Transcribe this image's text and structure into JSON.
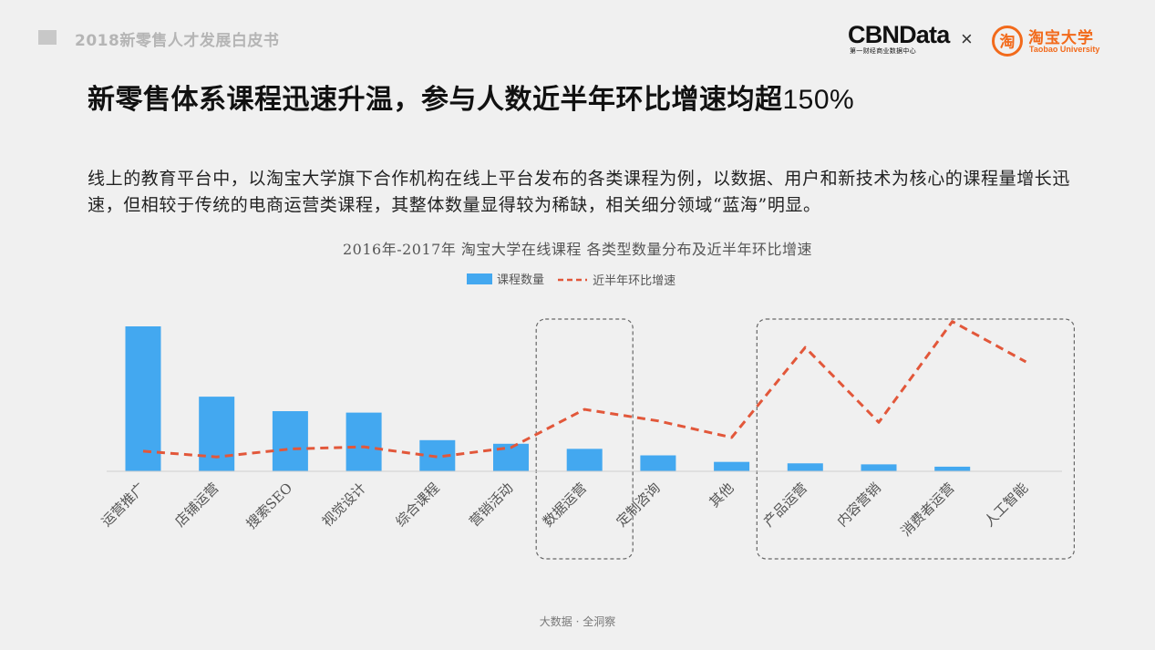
{
  "header": {
    "report_title": "2018新零售人才发展白皮书",
    "logo_cbn": "CBNData",
    "logo_cbn_sub": "第一财经商业数据中心",
    "logo_separator": "×",
    "logo_taobao_icon": "淘",
    "logo_taobao_cn": "淘宝大学",
    "logo_taobao_en": "Taobao University"
  },
  "slide": {
    "title_main": "新零售体系课程迅速升温，参与人数近半年环比增速均超",
    "title_pct": "150%",
    "body": "线上的教育平台中，以淘宝大学旗下合作机构在线上平台发布的各类课程为例，以数据、用户和新技术为核心的课程量增长迅速，但相较于传统的电商运营类课程，其整体数量显得较为稀缺，相关细分领域“蓝海”明显。"
  },
  "colors": {
    "bar": "#43a8f0",
    "line": "#e2573a",
    "highlight_box": "#666666",
    "background": "#f0f0f0"
  },
  "chart_data": {
    "type": "bar",
    "title": "2016年-2017年 淘宝大学在线课程 各类型数量分布及近半年环比增速",
    "categories": [
      "运营推广",
      "店铺运营",
      "搜索SEO",
      "视觉设计",
      "综合课程",
      "营销活动",
      "数据运营",
      "定制咨询",
      "其他",
      "产品运营",
      "内容营销",
      "消费者运营",
      "人工智能"
    ],
    "series": [
      {
        "name": "课程数量",
        "type": "bar",
        "values": [
          100,
          51.5,
          41.5,
          40.5,
          21.5,
          19,
          15.5,
          11,
          6.5,
          5.5,
          4.8,
          3.2,
          0
        ]
      },
      {
        "name": "近半年环比增速",
        "type": "line",
        "style": "dashed",
        "values": [
          14,
          10,
          15.5,
          17,
          10,
          16.5,
          43,
          35,
          23.5,
          86,
          34,
          104,
          76
        ]
      }
    ],
    "highlight_groups": [
      [
        "数据运营"
      ],
      [
        "产品运营",
        "内容营销",
        "消费者运营",
        "人工智能"
      ]
    ],
    "legend_position": "top-center",
    "grid": false
  },
  "footer": {
    "text": "大数据 · 全洞察"
  }
}
